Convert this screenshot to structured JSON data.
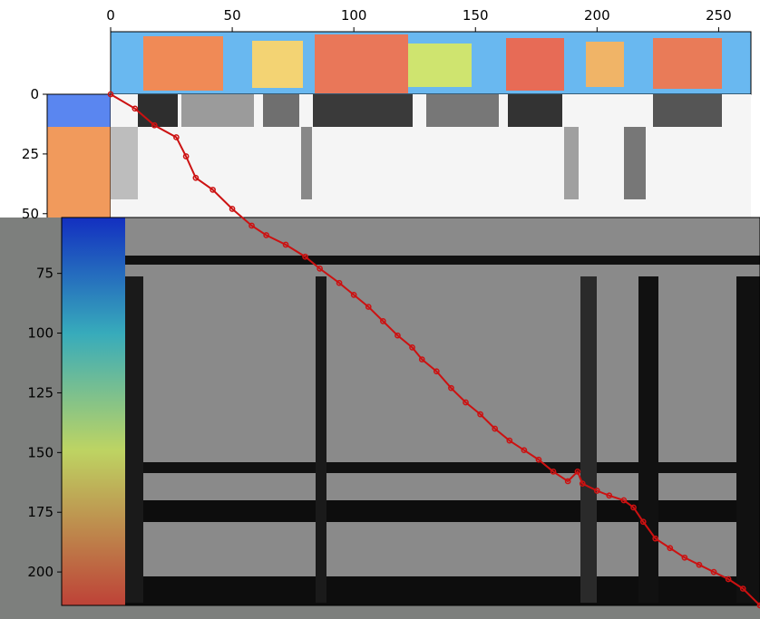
{
  "chart_data": {
    "type": "heatmap",
    "title": "",
    "xlabel": "",
    "ylabel": "",
    "x_axis": {
      "position": "top",
      "range": [
        0,
        267
      ],
      "ticks": [
        0,
        50,
        100,
        150,
        200,
        250
      ]
    },
    "y_axis": {
      "position": "left",
      "range": [
        0,
        214
      ],
      "inverted": true,
      "ticks": [
        0,
        25,
        50,
        75,
        100,
        125,
        150,
        175,
        200
      ]
    },
    "colormaps": {
      "matrix": "gray",
      "spectrograms": "jet"
    },
    "alignment_path": {
      "color": "#cc1111",
      "marker": "circle",
      "points": [
        [
          0,
          0
        ],
        [
          10,
          6
        ],
        [
          18,
          13
        ],
        [
          27,
          18
        ],
        [
          31,
          26
        ],
        [
          35,
          35
        ],
        [
          42,
          40
        ],
        [
          50,
          48
        ],
        [
          58,
          55
        ],
        [
          64,
          59
        ],
        [
          72,
          63
        ],
        [
          80,
          68
        ],
        [
          86,
          73
        ],
        [
          94,
          79
        ],
        [
          100,
          84
        ],
        [
          106,
          89
        ],
        [
          112,
          95
        ],
        [
          118,
          101
        ],
        [
          124,
          106
        ],
        [
          128,
          111
        ],
        [
          134,
          116
        ],
        [
          140,
          123
        ],
        [
          146,
          129
        ],
        [
          152,
          134
        ],
        [
          158,
          140
        ],
        [
          164,
          145
        ],
        [
          170,
          149
        ],
        [
          176,
          153
        ],
        [
          182,
          158
        ],
        [
          188,
          162
        ],
        [
          192,
          158
        ],
        [
          194,
          163
        ],
        [
          200,
          166
        ],
        [
          205,
          168
        ],
        [
          211,
          170
        ],
        [
          215,
          173
        ],
        [
          219,
          179
        ],
        [
          224,
          186
        ],
        [
          230,
          190
        ],
        [
          236,
          194
        ],
        [
          242,
          197
        ],
        [
          248,
          200
        ],
        [
          254,
          203
        ],
        [
          260,
          207
        ],
        [
          267,
          214
        ]
      ]
    },
    "overlay": {
      "from_y": 52,
      "description": ""
    }
  }
}
